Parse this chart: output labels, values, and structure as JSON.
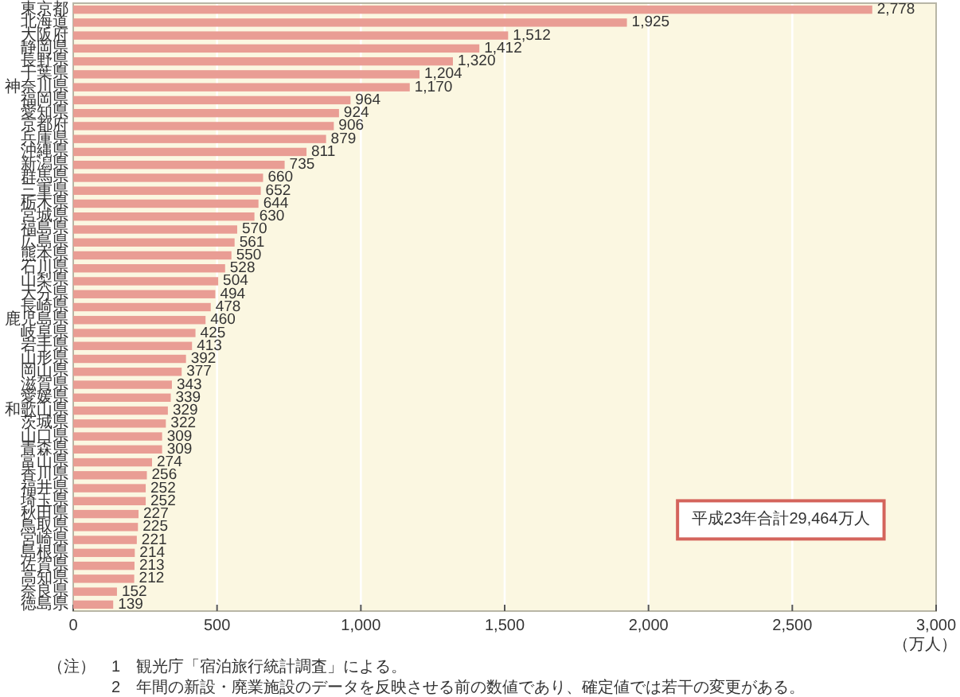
{
  "chart_data": {
    "type": "bar",
    "orientation": "horizontal",
    "categories": [
      "東京都",
      "北海道",
      "大阪府",
      "静岡県",
      "長野県",
      "千葉県",
      "神奈川県",
      "福岡県",
      "愛知県",
      "京都府",
      "兵庫県",
      "沖縄県",
      "新潟県",
      "群馬県",
      "三重県",
      "栃木県",
      "宮城県",
      "福島県",
      "広島県",
      "熊本県",
      "石川県",
      "山梨県",
      "大分県",
      "長崎県",
      "鹿児島県",
      "岐阜県",
      "岩手県",
      "山形県",
      "岡山県",
      "滋賀県",
      "愛媛県",
      "和歌山県",
      "茨城県",
      "山口県",
      "青森県",
      "富山県",
      "香川県",
      "福井県",
      "埼玉県",
      "秋田県",
      "鳥取県",
      "宮崎県",
      "島根県",
      "佐賀県",
      "高知県",
      "奈良県",
      "徳島県"
    ],
    "values": [
      2778,
      1925,
      1512,
      1412,
      1320,
      1204,
      1170,
      964,
      924,
      906,
      879,
      811,
      735,
      660,
      652,
      644,
      630,
      570,
      561,
      550,
      528,
      504,
      494,
      478,
      460,
      425,
      413,
      392,
      377,
      343,
      339,
      329,
      322,
      309,
      309,
      274,
      256,
      252,
      252,
      227,
      225,
      221,
      214,
      213,
      212,
      152,
      139
    ],
    "value_labels": [
      "2,778",
      "1,925",
      "1,512",
      "1,412",
      "1,320",
      "1,204",
      "1,170",
      "964",
      "924",
      "906",
      "879",
      "811",
      "735",
      "660",
      "652",
      "644",
      "630",
      "570",
      "561",
      "550",
      "528",
      "504",
      "494",
      "478",
      "460",
      "425",
      "413",
      "392",
      "377",
      "343",
      "339",
      "329",
      "322",
      "309",
      "309",
      "274",
      "256",
      "252",
      "252",
      "227",
      "225",
      "221",
      "214",
      "213",
      "212",
      "152",
      "139"
    ],
    "color": "#e99d94",
    "xlim": [
      0,
      3000
    ],
    "xticks": [
      0,
      500,
      {
        "value": 1000,
        "label": "1,000"
      },
      {
        "value": 1500,
        "label": "1,500"
      },
      {
        "value": 2000,
        "label": "2,000"
      },
      {
        "value": 2500,
        "label": "2,500"
      },
      {
        "value": 3000,
        "label": "3,000"
      }
    ],
    "xlabel": "（万人）",
    "grid": "x",
    "annotations": [
      "平成23年合計29,464万人",
      "（注）　1　観光庁「宿泊旅行統計調査」による。",
      "2　年間の新設・廃業施設のデータを反映させる前の数値であり、確定値では若干の変更がある。"
    ]
  }
}
